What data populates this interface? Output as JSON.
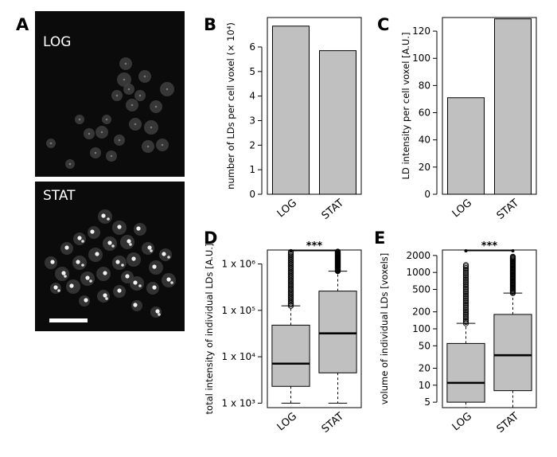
{
  "panel_labels": [
    "A",
    "B",
    "C",
    "D",
    "E"
  ],
  "micrographs": [
    {
      "label": "LOG"
    },
    {
      "label": "STAT"
    }
  ],
  "colors": {
    "bar": "#c0c0c0",
    "box": "#c0c0c0",
    "micro_bg": "#0b0b0b"
  },
  "chart_data": [
    {
      "panel": "B",
      "type": "bar",
      "categories": [
        "LOG",
        "STAT"
      ],
      "values": [
        6.85,
        5.85
      ],
      "ylabel": "number of LDs per cell voxel (× 10⁴)",
      "ylim": [
        0,
        7.2
      ],
      "yticks": [
        "0",
        "1",
        "2",
        "3",
        "4",
        "5",
        "6"
      ]
    },
    {
      "panel": "C",
      "type": "bar",
      "categories": [
        "LOG",
        "STAT"
      ],
      "values": [
        71,
        129
      ],
      "ylabel": "LD intensity per cell voxel [A.U.]",
      "ylim": [
        0,
        130
      ],
      "yticks": [
        "0",
        "20",
        "40",
        "60",
        "80",
        "100",
        "120"
      ]
    },
    {
      "panel": "D",
      "type": "box",
      "scale": "log",
      "categories": [
        "LOG",
        "STAT"
      ],
      "ylabel": "total intensity of individual LDs [A.U.]",
      "ylim": [
        800,
        2000000
      ],
      "yticks": [
        {
          "value": 1000,
          "label": "1 x 10³"
        },
        {
          "value": 10000,
          "label": "1 x 10⁴"
        },
        {
          "value": 100000,
          "label": "1 x 10⁵"
        },
        {
          "value": 1000000,
          "label": "1 x 10⁶"
        }
      ],
      "boxes": [
        {
          "min": 1000,
          "q1": 2300,
          "median": 7100,
          "q3": 48000,
          "max": 125000,
          "outlier_top": 1800000
        },
        {
          "min": 1000,
          "q1": 4500,
          "median": 32000,
          "q3": 260000,
          "max": 700000,
          "outlier_top": 1850000
        }
      ],
      "significance": "***"
    },
    {
      "panel": "E",
      "type": "box",
      "scale": "log",
      "categories": [
        "LOG",
        "STAT"
      ],
      "ylabel": "volume of individual LDs [voxels]",
      "ylim": [
        4,
        2500
      ],
      "yticks": [
        {
          "value": 5,
          "label": "5"
        },
        {
          "value": 10,
          "label": "10"
        },
        {
          "value": 20,
          "label": "20"
        },
        {
          "value": 50,
          "label": "50"
        },
        {
          "value": 100,
          "label": "100"
        },
        {
          "value": 200,
          "label": "200"
        },
        {
          "value": 500,
          "label": "500"
        },
        {
          "value": 1000,
          "label": "1000"
        },
        {
          "value": 2000,
          "label": "2000"
        }
      ],
      "boxes": [
        {
          "min": 4,
          "q1": 5,
          "median": 11,
          "q3": 55,
          "max": 125,
          "outlier_top": 1350
        },
        {
          "min": 4,
          "q1": 8,
          "median": 34,
          "q3": 180,
          "max": 430,
          "outlier_top": 1900
        }
      ],
      "significance": "***"
    }
  ]
}
